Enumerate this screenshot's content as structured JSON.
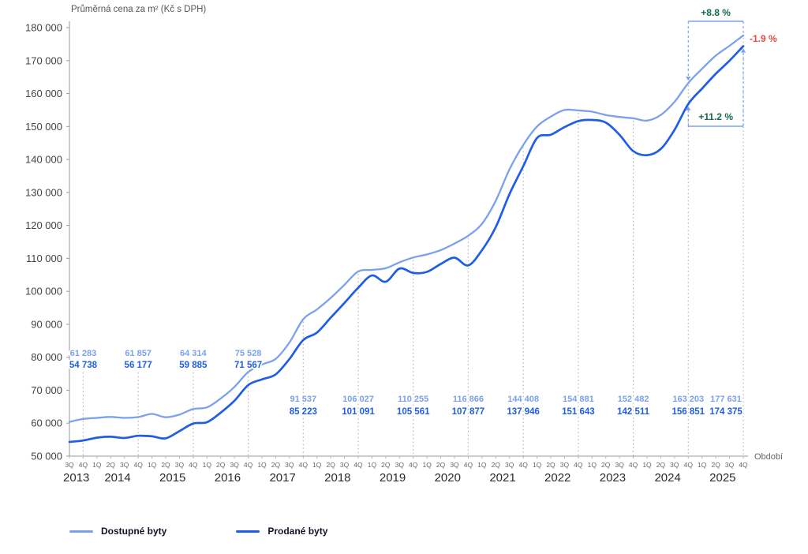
{
  "title": "Průměrná cena za m² (Kč s DPH)",
  "legend": [
    {
      "label": "Dostupné byty",
      "color": "#7BA0EE"
    },
    {
      "label": "Prodané byty",
      "color": "#1F5DE6"
    }
  ],
  "chart_data": {
    "type": "line",
    "title": "Průměrná cena za m² (Kč s DPH)",
    "xlabel": "Období",
    "ylim": [
      50000,
      180000
    ],
    "y_tick_step": 10000,
    "grid": false,
    "legend_position": "bottom-left",
    "quarter_labels": [
      "3Q",
      "4Q",
      "1Q",
      "2Q",
      "3Q",
      "4Q",
      "1Q",
      "2Q",
      "3Q",
      "4Q",
      "1Q",
      "2Q",
      "3Q",
      "4Q",
      "1Q",
      "2Q",
      "3Q",
      "4Q",
      "1Q",
      "2Q",
      "3Q",
      "4Q",
      "1Q",
      "2Q",
      "3Q",
      "4Q",
      "1Q",
      "2Q",
      "3Q",
      "4Q",
      "1Q",
      "2Q",
      "3Q",
      "4Q",
      "1Q",
      "2Q",
      "3Q",
      "4Q",
      "1Q",
      "2Q",
      "3Q",
      "4Q",
      "1Q",
      "2Q",
      "3Q",
      "4Q",
      "1Q",
      "2Q",
      "3Q",
      "4Q"
    ],
    "years": [
      {
        "label": "2013",
        "start": 0,
        "end": 1
      },
      {
        "label": "2014",
        "start": 2,
        "end": 5
      },
      {
        "label": "2015",
        "start": 6,
        "end": 9
      },
      {
        "label": "2016",
        "start": 10,
        "end": 13
      },
      {
        "label": "2017",
        "start": 14,
        "end": 17
      },
      {
        "label": "2018",
        "start": 18,
        "end": 21
      },
      {
        "label": "2019",
        "start": 22,
        "end": 25
      },
      {
        "label": "2020",
        "start": 26,
        "end": 29
      },
      {
        "label": "2021",
        "start": 30,
        "end": 33
      },
      {
        "label": "2022",
        "start": 34,
        "end": 37
      },
      {
        "label": "2023",
        "start": 38,
        "end": 41
      },
      {
        "label": "2024",
        "start": 42,
        "end": 45
      },
      {
        "label": "2025",
        "start": 46,
        "end": 49
      }
    ],
    "series": [
      {
        "name": "Dostupné byty",
        "color": "#7BA0EE",
        "values": [
          60400,
          61283,
          61600,
          61900,
          61600,
          61857,
          62800,
          61800,
          62600,
          64314,
          64800,
          67500,
          71000,
          75528,
          77800,
          79500,
          84500,
          91537,
          94500,
          98000,
          102000,
          106027,
          106500,
          107000,
          108800,
          110255,
          111200,
          112500,
          114500,
          116866,
          120500,
          127500,
          137000,
          144408,
          150000,
          153000,
          155000,
          154881,
          154500,
          153500,
          152900,
          152482,
          151800,
          153500,
          157500,
          163203,
          167500,
          171500,
          174500,
          177631
        ]
      },
      {
        "name": "Prodané byty",
        "color": "#1F5DE6",
        "values": [
          54300,
          54738,
          55600,
          55900,
          55500,
          56177,
          56000,
          55400,
          57600,
          59885,
          60300,
          63200,
          66800,
          71567,
          73300,
          74800,
          79500,
          85223,
          87500,
          92000,
          96500,
          101091,
          104800,
          102900,
          106900,
          105561,
          105900,
          108300,
          110200,
          107877,
          112500,
          119500,
          129500,
          137946,
          146500,
          147500,
          149800,
          151643,
          152000,
          151200,
          147500,
          142511,
          141300,
          143200,
          149000,
          156851,
          161500,
          166000,
          170000,
          174375
        ]
      }
    ],
    "callouts": [
      {
        "index": 1,
        "top": "61 283",
        "bottom": "54 738",
        "position": "above"
      },
      {
        "index": 5,
        "top": "61 857",
        "bottom": "56 177",
        "position": "above"
      },
      {
        "index": 9,
        "top": "64 314",
        "bottom": "59 885",
        "position": "above"
      },
      {
        "index": 13,
        "top": "75 528",
        "bottom": "71 567",
        "position": "above"
      },
      {
        "index": 17,
        "top": "91 537",
        "bottom": "85 223",
        "position": "below"
      },
      {
        "index": 21,
        "top": "106 027",
        "bottom": "101 091",
        "position": "below"
      },
      {
        "index": 25,
        "top": "110 255",
        "bottom": "105 561",
        "position": "below"
      },
      {
        "index": 29,
        "top": "116 866",
        "bottom": "107 877",
        "position": "below"
      },
      {
        "index": 33,
        "top": "144 408",
        "bottom": "137 946",
        "position": "below"
      },
      {
        "index": 37,
        "top": "154 881",
        "bottom": "151 643",
        "position": "below"
      },
      {
        "index": 41,
        "top": "152 482",
        "bottom": "142 511",
        "position": "below"
      },
      {
        "index": 45,
        "top": "163 203",
        "bottom": "156 851",
        "position": "below"
      },
      {
        "index": 49,
        "top": "177 631",
        "bottom": "174 375",
        "position": "below",
        "shift": -22
      }
    ],
    "annotations": {
      "top_change": {
        "label": "+8.8 %",
        "color": "#166B4F",
        "series": "Dostupné byty",
        "from_index": 45,
        "to_index": 49
      },
      "mid_change": {
        "label": "+11.2 %",
        "color": "#166B4F",
        "series": "Prodané byty",
        "from_index": 45,
        "to_index": 49
      },
      "gap": {
        "label": "-1.9 %",
        "color": "#E8483F",
        "at_index": 49
      }
    }
  }
}
